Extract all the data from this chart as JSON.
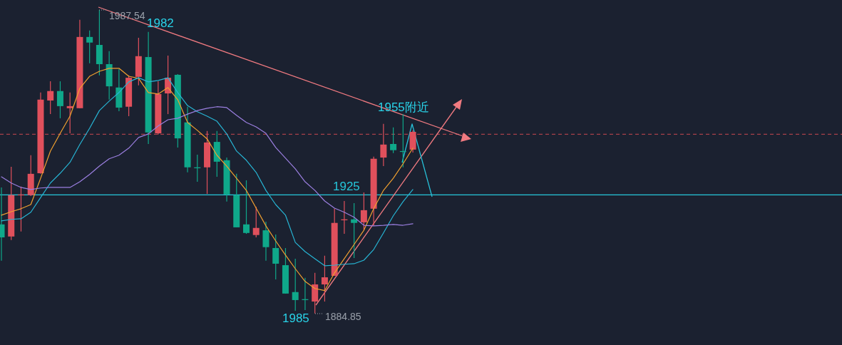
{
  "chart_data": {
    "type": "candlestick",
    "categories": [
      null,
      null,
      null,
      null,
      null,
      null,
      null,
      null,
      null,
      null,
      null,
      null,
      null,
      null,
      null,
      null,
      null,
      null,
      null,
      null,
      null,
      null,
      null,
      null,
      null,
      null,
      null,
      null,
      null,
      null,
      null,
      null,
      null,
      null,
      null,
      null,
      null,
      null,
      null,
      null,
      null,
      null,
      null
    ],
    "ylim": [
      1874.2,
      1990.9
    ],
    "ohlc": [
      [
        1915.0,
        1927.5,
        1902.7,
        1910.6
      ],
      [
        1910.9,
        1934.5,
        1909.7,
        1924.9
      ],
      [
        1924.9,
        1927.8,
        1912.6,
        1925.1
      ],
      [
        1924.9,
        1938.4,
        1924.6,
        1932.1
      ],
      [
        1932.3,
        1959.6,
        1932.1,
        1957.2
      ],
      [
        1956.9,
        1963.4,
        1952.3,
        1960.1
      ],
      [
        1960.1,
        1963.4,
        1950.9,
        1955.0
      ],
      [
        1954.3,
        1959.6,
        1945.8,
        1955.0
      ],
      [
        1954.3,
        1984.2,
        1954.3,
        1978.4
      ],
      [
        1978.4,
        1980.6,
        1969.5,
        1976.5
      ],
      [
        1975.7,
        1987.54,
        1965.4,
        1969.2
      ],
      [
        1969.2,
        1973.6,
        1957.2,
        1961.7
      ],
      [
        1961.3,
        1967.5,
        1953.3,
        1954.5
      ],
      [
        1954.8,
        1965.4,
        1951.6,
        1964.6
      ],
      [
        1964.9,
        1978.1,
        1962.0,
        1971.9
      ],
      [
        1971.6,
        1980.1,
        1942.2,
        1946.1
      ],
      [
        1945.8,
        1963.4,
        1945.4,
        1959.1
      ],
      [
        1959.3,
        1972.1,
        1952.3,
        1964.6
      ],
      [
        1965.6,
        1965.8,
        1941.0,
        1944.1
      ],
      [
        1949.5,
        1954.8,
        1932.6,
        1934.3
      ],
      [
        1934.3,
        1938.6,
        1929.4,
        1934.0
      ],
      [
        1934.3,
        1946.6,
        1925.3,
        1942.7
      ],
      [
        1942.9,
        1946.6,
        1931.1,
        1936.2
      ],
      [
        1936.7,
        1937.6,
        1922.7,
        1925.1
      ],
      [
        1924.9,
        1932.1,
        1914.0,
        1914.0
      ],
      [
        1915.0,
        1929.9,
        1911.8,
        1912.1
      ],
      [
        1911.4,
        1921.0,
        1910.6,
        1913.8
      ],
      [
        1913.0,
        1915.9,
        1902.7,
        1907.3
      ],
      [
        1907.0,
        1911.6,
        1896.4,
        1901.7
      ],
      [
        1901.2,
        1907.0,
        1891.6,
        1891.6
      ],
      [
        1892.1,
        1903.4,
        1885.8,
        1889.4
      ],
      [
        1889.7,
        1896.9,
        1886.0,
        1889.4
      ],
      [
        1888.9,
        1898.6,
        1884.85,
        1894.7
      ],
      [
        1894.7,
        1904.4,
        1888.9,
        1897.1
      ],
      [
        1897.6,
        1920.3,
        1897.6,
        1915.5
      ],
      [
        1916.4,
        1922.9,
        1911.8,
        1916.7
      ],
      [
        1916.7,
        1922.2,
        1903.6,
        1915.5
      ],
      [
        1915.7,
        1925.8,
        1913.0,
        1919.8
      ],
      [
        1920.3,
        1937.9,
        1914.5,
        1937.2
      ],
      [
        1937.6,
        1949.0,
        1934.7,
        1942.0
      ],
      [
        1942.2,
        1947.8,
        1939.1,
        1940.1
      ],
      [
        1939.8,
        1952.3,
        1934.3,
        1939.6
      ],
      [
        1940.3,
        1946.8,
        1939.3,
        1946.3
      ]
    ],
    "colors": [
      "#0fa88a",
      "#e0505c",
      "#e0505c",
      "#e0505c",
      "#e0505c",
      "#e0505c",
      "#0fa88a",
      "#e0505c",
      "#e0505c",
      "#0fa88a",
      "#0fa88a",
      "#0fa88a",
      "#0fa88a",
      "#e0505c",
      "#e0505c",
      "#0fa88a",
      "#e0505c",
      "#e0505c",
      "#0fa88a",
      "#0fa88a",
      "#0fa88a",
      "#e0505c",
      "#0fa88a",
      "#0fa88a",
      "#0fa88a",
      "#0fa88a",
      "#e0505c",
      "#0fa88a",
      "#0fa88a",
      "#0fa88a",
      "#0fa88a",
      "#0fa88a",
      "#e0505c",
      "#e0505c",
      "#e0505c",
      "#e0505c",
      "#0fa88a",
      "#e0505c",
      "#e0505c",
      "#e0505c",
      "#0fa88a",
      "#0fa88a",
      "#e0505c"
    ],
    "series": [
      {
        "type": "line",
        "color": "#f0a030",
        "values": [
          1918.1,
          1919.3,
          1920.3,
          1921.7,
          1930.6,
          1939.8,
          1945.8,
          1951.6,
          1961.0,
          1965.1,
          1966.8,
          1967.8,
          1967.8,
          1965.1,
          1964.4,
          1959.6,
          1959.1,
          1961.3,
          1957.2,
          1949.5,
          1946.8,
          1943.9,
          1938.4,
          1934.7,
          1930.6,
          1926.5,
          1920.5,
          1914.5,
          1909.4,
          1904.6,
          1900.0,
          1895.7,
          1893.3,
          1892.6,
          1898.6,
          1903.4,
          1908.2,
          1913.0,
          1920.3,
          1926.5,
          1930.6,
          1935.5,
          1940.8
        ]
      },
      {
        "type": "line",
        "color": "#27b5d4",
        "values": [
          1916.2,
          1916.7,
          1916.9,
          1919.1,
          1924.1,
          1929.0,
          1932.3,
          1936.0,
          1942.0,
          1947.5,
          1953.5,
          1956.7,
          1959.6,
          1963.2,
          1964.6,
          1963.2,
          1963.7,
          1964.6,
          1959.6,
          1955.2,
          1953.1,
          1951.6,
          1949.9,
          1945.6,
          1939.8,
          1936.7,
          1932.6,
          1926.5,
          1921.7,
          1918.1,
          1908.9,
          1905.8,
          1903.4,
          1901.0,
          1901.2,
          1901.5,
          1901.7,
          1902.9,
          1906.5,
          1912.1,
          1917.9,
          1922.7,
          1926.8
        ]
      },
      {
        "type": "line",
        "color": "#9b7fe0",
        "values": [
          1931.1,
          1929.0,
          1927.5,
          1926.8,
          1927.3,
          1927.5,
          1927.5,
          1927.5,
          1929.4,
          1931.9,
          1934.7,
          1937.2,
          1938.4,
          1940.8,
          1944.4,
          1945.6,
          1948.3,
          1950.4,
          1950.9,
          1952.3,
          1953.5,
          1954.3,
          1954.8,
          1954.5,
          1951.9,
          1949.5,
          1948.0,
          1945.8,
          1941.0,
          1937.4,
          1933.8,
          1929.4,
          1926.5,
          1922.9,
          1920.5,
          1919.1,
          1917.4,
          1914.7,
          1914.5,
          1914.7,
          1915.0,
          1914.7,
          1915.2
        ]
      }
    ],
    "ref_lines": [
      {
        "axis": "y",
        "value": 1925,
        "label": "1925",
        "color": "#26c6da",
        "line_style": "solid"
      },
      {
        "axis": "y",
        "value": 1945.5,
        "color": "#a8404a",
        "line_style": "dashed"
      }
    ],
    "annotations": [
      "1987.54",
      "1884.85",
      "1982",
      "1955附近",
      "1985"
    ]
  }
}
